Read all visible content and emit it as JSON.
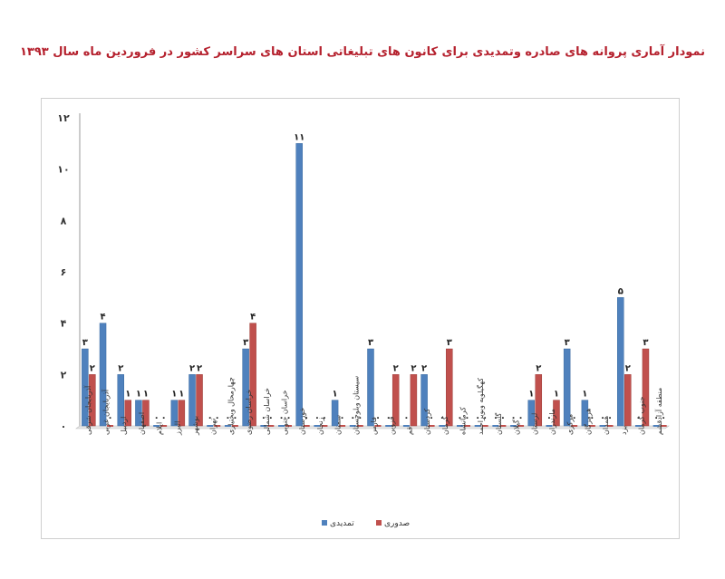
{
  "chart_data": {
    "type": "bar",
    "title": "نمودار آماری پروانه های صادره وتمدیدی برای کانون های تبلیغاتی استان های سراسر کشور در فروردین ماه سال ۱۳۹۳",
    "ylim": [
      0,
      12
    ],
    "yticks": [
      "۰",
      "۲",
      "۴",
      "۶",
      "۸",
      "۱۰",
      "۱۲"
    ],
    "categories": [
      "آذربایجان شرقی",
      "آذربایجان غربی",
      "اردبیل",
      "اصفهان",
      "ایلام",
      "البرز",
      "بوشهر",
      "تهران",
      "چهارمحال وبختیاری",
      "خراسان رضوی",
      "خراسان شمالی",
      "خراسان جنوبی",
      "خوزستان",
      "زنجان",
      "سمنان",
      "سیستان وبلوچستان",
      "فارس",
      "قزوین",
      "قم",
      "کردستان",
      "کرمان",
      "کرمانشاه",
      "کهگیلویه وبویراحمد",
      "گلستان",
      "گیلان",
      "لرستان",
      "مازندران",
      "مرکزی",
      "هرمزگان",
      "همدان",
      "یزد",
      "جنوب کرمان",
      "منطقه آزادقشم"
    ],
    "series": [
      {
        "name": "تمدیدی",
        "color": "#4f81bd",
        "values": [
          3,
          4,
          2,
          1,
          0,
          1,
          2,
          0,
          0,
          3,
          0,
          0,
          11,
          0,
          1,
          0,
          3,
          0,
          0,
          2,
          0,
          0,
          0,
          0,
          0,
          1,
          0,
          3,
          1,
          0,
          5,
          0,
          0
        ],
        "labels": [
          "۳",
          "۴",
          "۲",
          "۱",
          "۰",
          "۱",
          "۲",
          "۰",
          "۰",
          "۳",
          "۰",
          "۰",
          "۱۱",
          "۰",
          "۱",
          "۰",
          "۳",
          "۰",
          "۰",
          "۲",
          "۰",
          "۰",
          "۰",
          "۰",
          "۰",
          "۱",
          "۰",
          "۳",
          "۱",
          "۰",
          "۵",
          "۰",
          "۰"
        ]
      },
      {
        "name": "صدوری",
        "color": "#c0504d",
        "values": [
          2,
          0,
          1,
          1,
          0,
          1,
          2,
          0,
          0,
          4,
          0,
          0,
          0,
          0,
          0,
          0,
          0,
          2,
          2,
          0,
          3,
          0,
          0,
          0,
          0,
          2,
          1,
          0,
          0,
          0,
          2,
          3,
          0
        ],
        "labels": [
          "۲",
          "۰",
          "۱",
          "۱",
          "۰",
          "۱",
          "۲",
          "۰",
          "۰",
          "۴",
          "۰",
          "۰",
          "۰",
          "۰",
          "۰",
          "۰",
          "۰",
          "۲",
          "۲",
          "۰",
          "۳",
          "۰",
          "۰",
          "۰",
          "۰",
          "۲",
          "۱",
          "۰",
          "۰",
          "۰",
          "۲",
          "۳",
          "۰"
        ]
      }
    ],
    "legend": "bottom",
    "grid": false
  }
}
